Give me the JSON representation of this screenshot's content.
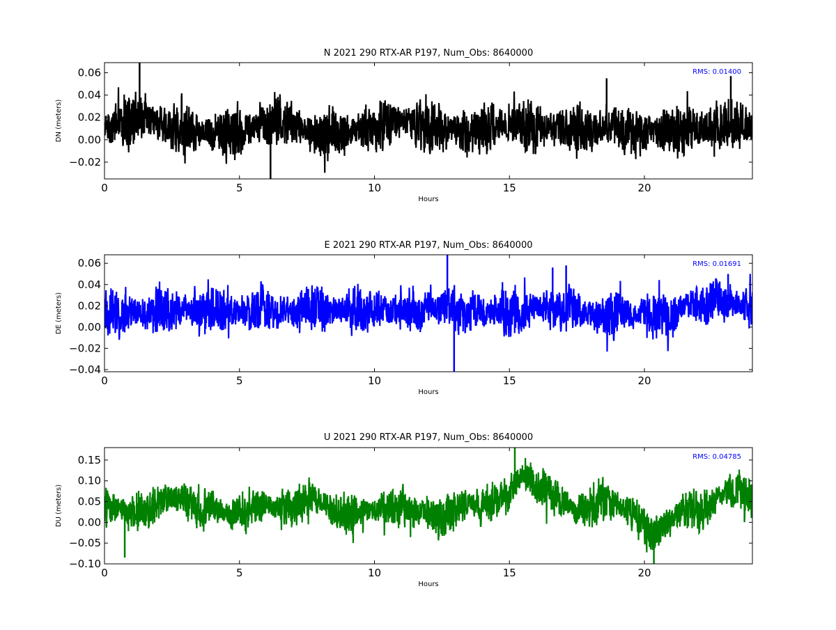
{
  "chart_data": [
    {
      "type": "line",
      "title": "N 2021 290 RTX-AR  P197, Num_Obs: 8640000",
      "xlabel": "Hours",
      "ylabel": "DN (meters)",
      "xlim": [
        0,
        24
      ],
      "ylim": [
        -0.035,
        0.069
      ],
      "xticks": [
        "0",
        "5",
        "10",
        "15",
        "20"
      ],
      "xtick_values": [
        0,
        5,
        10,
        15,
        20
      ],
      "yticks": [
        "−0.02",
        "0.00",
        "0.02",
        "0.04",
        "0.06"
      ],
      "ytick_values": [
        -0.02,
        0.0,
        0.02,
        0.04,
        0.06
      ],
      "annotation": "RMS:  0.01400",
      "annotation_color": "#0000ff",
      "grid": false,
      "color": "#000000",
      "noise": 0.028,
      "spikes": [
        [
          1.3,
          0.069
        ],
        [
          6.15,
          -0.036
        ],
        [
          18.6,
          0.055
        ],
        [
          23.2,
          0.057
        ]
      ],
      "series": [
        {
          "x": [
            0,
            0.5,
            1,
            1.3,
            2,
            2.5,
            3,
            4,
            4.7,
            5,
            6,
            6.5,
            7,
            7.5,
            8,
            9,
            10,
            10.5,
            11,
            12,
            13,
            13.5,
            14,
            14.5,
            15,
            16,
            17,
            18,
            18.5,
            19,
            20,
            21,
            22,
            23,
            24
          ],
          "values": [
            0.01,
            0.012,
            0.018,
            0.022,
            0.015,
            0.012,
            0.011,
            0.008,
            0.005,
            0.006,
            0.014,
            0.018,
            0.015,
            0.01,
            0.004,
            0.008,
            0.01,
            0.014,
            0.016,
            0.012,
            0.01,
            0.006,
            0.008,
            0.014,
            0.015,
            0.012,
            0.011,
            0.008,
            0.012,
            0.009,
            0.005,
            0.008,
            0.01,
            0.014,
            0.012
          ]
        }
      ]
    },
    {
      "type": "line",
      "title": "E 2021 290 RTX-AR  P197, Num_Obs: 8640000",
      "xlabel": "Hours",
      "ylabel": "DE (meters)",
      "xlim": [
        0,
        24
      ],
      "ylim": [
        -0.042,
        0.068
      ],
      "xticks": [
        "0",
        "5",
        "10",
        "15",
        "20"
      ],
      "xtick_values": [
        0,
        5,
        10,
        15,
        20
      ],
      "yticks": [
        "−0.04",
        "−0.02",
        "0.00",
        "0.02",
        "0.04",
        "0.06"
      ],
      "ytick_values": [
        -0.04,
        -0.02,
        0.0,
        0.02,
        0.04,
        0.06
      ],
      "annotation": "RMS:  0.01691",
      "annotation_color": "#0000ff",
      "grid": false,
      "color": "#0000ff",
      "noise": 0.026,
      "spikes": [
        [
          12.7,
          0.068
        ],
        [
          12.95,
          -0.042
        ],
        [
          16.6,
          0.056
        ],
        [
          17.1,
          0.058
        ],
        [
          23.1,
          0.05
        ]
      ],
      "series": [
        {
          "x": [
            0,
            1,
            2,
            3,
            4,
            5,
            6,
            7,
            7.5,
            8,
            9,
            10,
            11,
            12,
            12.7,
            13,
            14,
            15,
            16,
            16.5,
            17,
            18,
            18.5,
            19,
            20,
            21,
            21.5,
            22,
            23,
            24
          ],
          "values": [
            0.013,
            0.014,
            0.015,
            0.015,
            0.016,
            0.016,
            0.017,
            0.014,
            0.018,
            0.016,
            0.017,
            0.016,
            0.016,
            0.016,
            0.02,
            0.017,
            0.014,
            0.013,
            0.018,
            0.02,
            0.019,
            0.012,
            0.008,
            0.013,
            0.013,
            0.012,
            0.02,
            0.022,
            0.024,
            0.02
          ]
        }
      ]
    },
    {
      "type": "line",
      "title": "U 2021 290 RTX-AR  P197, Num_Obs: 8640000",
      "xlabel": "Hours",
      "ylabel": "DU (meters)",
      "xlim": [
        0,
        24
      ],
      "ylim": [
        -0.1,
        0.18
      ],
      "xticks": [
        "0",
        "5",
        "10",
        "15",
        "20"
      ],
      "xtick_values": [
        0,
        5,
        10,
        15,
        20
      ],
      "yticks": [
        "−0.10",
        "−0.05",
        "0.00",
        "0.05",
        "0.10",
        "0.15"
      ],
      "ytick_values": [
        -0.1,
        -0.05,
        0.0,
        0.05,
        0.1,
        0.15
      ],
      "annotation": "RMS:  0.04785",
      "annotation_color": "#0000ff",
      "grid": false,
      "color": "#008000",
      "noise": 0.06,
      "spikes": [
        [
          0.75,
          -0.085
        ],
        [
          15.2,
          0.18
        ],
        [
          20.35,
          -0.1
        ]
      ],
      "series": [
        {
          "x": [
            0,
            0.5,
            1,
            1.5,
            2,
            2.5,
            3,
            3.5,
            4,
            4.5,
            5,
            6,
            7,
            7.5,
            8,
            8.5,
            9,
            10,
            11,
            12,
            12.5,
            13,
            13.5,
            14,
            14.5,
            15,
            15.5,
            16,
            16.5,
            17,
            17.5,
            18,
            18.5,
            19,
            19.5,
            20,
            20.4,
            21,
            21.5,
            22,
            22.5,
            23,
            23.5,
            24
          ],
          "values": [
            0.03,
            0.04,
            0.02,
            0.03,
            0.05,
            0.06,
            0.05,
            0.03,
            0.04,
            0.02,
            0.03,
            0.04,
            0.03,
            0.06,
            0.05,
            0.03,
            0.02,
            0.03,
            0.04,
            0.02,
            0.0,
            0.03,
            0.05,
            0.04,
            0.05,
            0.07,
            0.12,
            0.09,
            0.07,
            0.05,
            0.03,
            0.04,
            0.05,
            0.04,
            0.02,
            -0.01,
            -0.03,
            0.01,
            0.03,
            0.02,
            0.05,
            0.07,
            0.08,
            0.06
          ]
        }
      ]
    }
  ]
}
